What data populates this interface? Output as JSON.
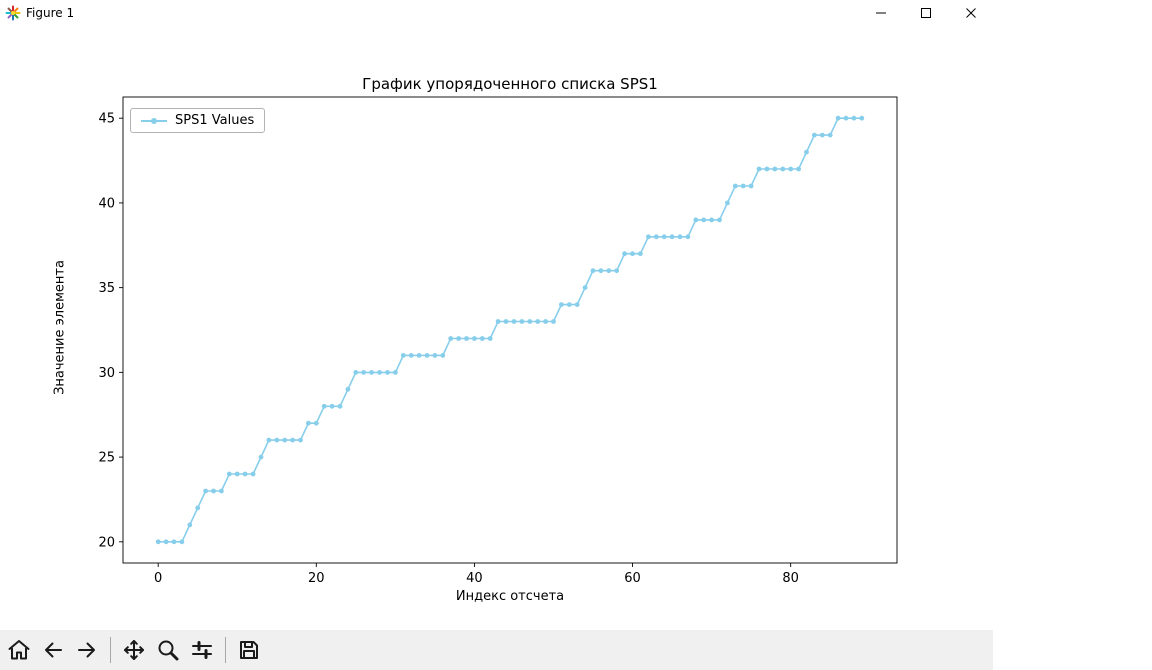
{
  "window": {
    "title": "Figure 1",
    "controls": [
      {
        "name": "minimize-button",
        "icon": "minimize-icon"
      },
      {
        "name": "maximize-button",
        "icon": "maximize-icon"
      },
      {
        "name": "close-button",
        "icon": "close-icon"
      }
    ]
  },
  "toolbar": {
    "buttons": [
      {
        "name": "home-button",
        "icon": "home-icon"
      },
      {
        "name": "back-button",
        "icon": "arrow-left-icon"
      },
      {
        "name": "forward-button",
        "icon": "arrow-right-icon"
      },
      {
        "name": "pan-button",
        "icon": "move-arrows-icon"
      },
      {
        "name": "zoom-button",
        "icon": "magnifier-icon"
      },
      {
        "name": "subplots-button",
        "icon": "sliders-icon"
      },
      {
        "name": "save-button",
        "icon": "floppy-disk-icon"
      }
    ]
  },
  "chart_data": {
    "type": "line",
    "title": "График упорядоченного списка SPS1",
    "xlabel": "Индекс отсчета",
    "ylabel": "Значение элемента",
    "legend": [
      "SPS1 Values"
    ],
    "legend_position": "upper left",
    "line_color": "#87ceeb",
    "marker": "circle",
    "grid": false,
    "xlim": [
      -4.45,
      93.45
    ],
    "ylim": [
      18.75,
      46.25
    ],
    "xticks": [
      0,
      20,
      40,
      60,
      80
    ],
    "yticks": [
      20,
      25,
      30,
      35,
      40,
      45
    ],
    "x_is_index": true,
    "values": [
      20,
      20,
      20,
      20,
      21,
      22,
      23,
      23,
      23,
      24,
      24,
      24,
      24,
      25,
      26,
      26,
      26,
      26,
      26,
      27,
      27,
      28,
      28,
      28,
      29,
      30,
      30,
      30,
      30,
      30,
      30,
      31,
      31,
      31,
      31,
      31,
      31,
      32,
      32,
      32,
      32,
      32,
      32,
      33,
      33,
      33,
      33,
      33,
      33,
      33,
      33,
      34,
      34,
      34,
      35,
      36,
      36,
      36,
      36,
      37,
      37,
      37,
      38,
      38,
      38,
      38,
      38,
      38,
      39,
      39,
      39,
      39,
      40,
      41,
      41,
      41,
      42,
      42,
      42,
      42,
      42,
      42,
      43,
      44,
      44,
      44,
      45,
      45,
      45,
      45
    ]
  }
}
